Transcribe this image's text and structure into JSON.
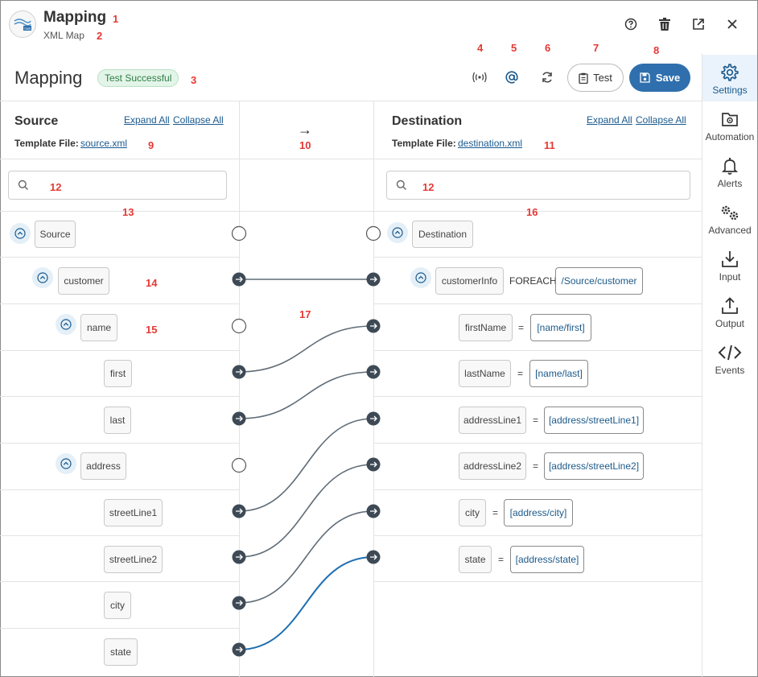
{
  "header": {
    "title": "Mapping",
    "subtitle": "XML Map",
    "logo_text": "TMS"
  },
  "toolbar": {
    "page_title": "Mapping",
    "status_badge": "Test Successful",
    "test_label": "Test",
    "save_label": "Save"
  },
  "sidebar": {
    "items": [
      {
        "label": "Settings",
        "icon": "gear-icon"
      },
      {
        "label": "Automation",
        "icon": "folder-gear-icon"
      },
      {
        "label": "Alerts",
        "icon": "bell-icon"
      },
      {
        "label": "Advanced",
        "icon": "gears-icon"
      },
      {
        "label": "Input",
        "icon": "download-icon"
      },
      {
        "label": "Output",
        "icon": "upload-icon"
      },
      {
        "label": "Events",
        "icon": "code-icon"
      }
    ]
  },
  "source": {
    "title": "Source",
    "expand_all": "Expand All",
    "collapse_all": "Collapse All",
    "template_label": "Template File:",
    "template_file": "source.xml",
    "search_placeholder": "",
    "nodes": {
      "root": "Source",
      "customer": "customer",
      "name": "name",
      "first": "first",
      "last": "last",
      "address": "address",
      "streetLine1": "streetLine1",
      "streetLine2": "streetLine2",
      "city": "city",
      "state": "state"
    }
  },
  "middle": {
    "arrow": "→"
  },
  "destination": {
    "title": "Destination",
    "expand_all": "Expand All",
    "collapse_all": "Collapse All",
    "template_label": "Template File:",
    "template_file": "destination.xml",
    "search_placeholder": "",
    "nodes": {
      "root": "Destination",
      "customerInfo": "customerInfo",
      "foreach": "FOREACH",
      "foreach_path": "/Source/customer",
      "firstName": "firstName",
      "firstName_expr": "[name/first]",
      "lastName": "lastName",
      "lastName_expr": "[name/last]",
      "addressLine1": "addressLine1",
      "addressLine1_expr": "[address/streetLine1]",
      "addressLine2": "addressLine2",
      "addressLine2_expr": "[address/streetLine2]",
      "city": "city",
      "city_expr": "[address/city]",
      "state": "state",
      "state_expr": "[address/state]",
      "eq": "="
    }
  },
  "annotations": [
    "1",
    "2",
    "3",
    "4",
    "5",
    "6",
    "7",
    "8",
    "9",
    "10",
    "11",
    "12",
    "12",
    "13",
    "14",
    "15",
    "16",
    "17"
  ],
  "colors": {
    "accent": "#2f6fad",
    "badge_bg": "#e3f5e8",
    "badge_border": "#b9e0c4",
    "badge_text": "#2e7d46",
    "line": "#5f6b76",
    "highlight_line": "#1f6fb2",
    "annotation": "#e53935"
  }
}
